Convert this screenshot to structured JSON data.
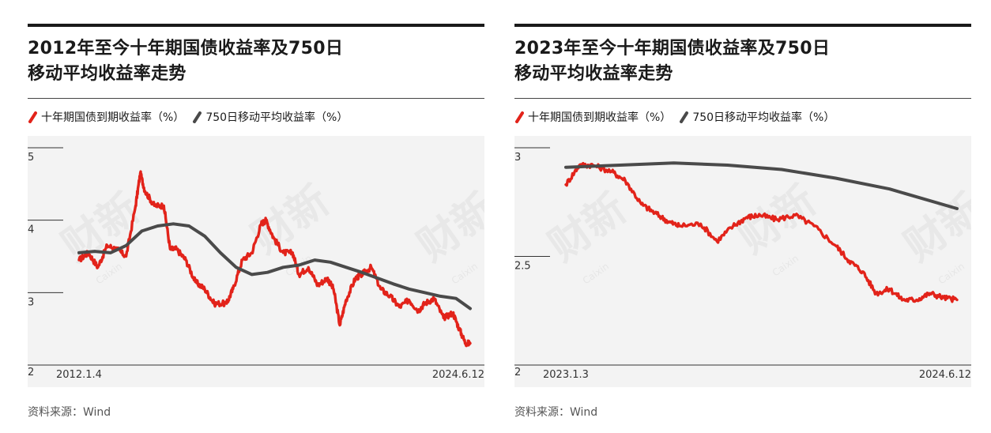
{
  "legend": {
    "yield_label": "十年期国债到期收益率（%）",
    "ma_label": "750日移动平均收益率（%）"
  },
  "colors": {
    "yield": "#e2231a",
    "ma": "#4a4a4a",
    "background": "#f3f3f3"
  },
  "source_text": "资料来源：Wind",
  "watermark": {
    "text": "财新",
    "sub": "Caixin"
  },
  "charts": [
    {
      "title_line1": "2012年至今十年期国债收益率及750日",
      "title_line2": "移动平均收益率走势",
      "start_label": "2012.1.4",
      "end_label": "2024.6.12"
    },
    {
      "title_line1": "2023年至今十年期国债收益率及750日",
      "title_line2": "移动平均收益率走势",
      "start_label": "2023.1.3",
      "end_label": "2024.6.12"
    }
  ],
  "chart_data": [
    {
      "type": "line",
      "title": "2012年至今十年期国债收益率及750日移动平均收益率走势",
      "x_range": [
        "2012.1.4",
        "2024.6.12"
      ],
      "ylim": [
        2,
        5
      ],
      "yticks": [
        2,
        3,
        4,
        5
      ],
      "grid": false,
      "legend": "top-left",
      "series": [
        {
          "name": "十年期国债到期收益率（%）",
          "x": [
            2012.0,
            2012.3,
            2012.6,
            2012.9,
            2013.2,
            2013.5,
            2013.8,
            2013.95,
            2014.1,
            2014.4,
            2014.7,
            2014.9,
            2015.1,
            2015.4,
            2015.7,
            2016.0,
            2016.3,
            2016.7,
            2016.9,
            2017.2,
            2017.5,
            2017.8,
            2017.95,
            2018.2,
            2018.5,
            2018.8,
            2019.0,
            2019.3,
            2019.6,
            2019.9,
            2020.1,
            2020.3,
            2020.5,
            2020.8,
            2021.0,
            2021.3,
            2021.6,
            2021.9,
            2022.2,
            2022.5,
            2022.8,
            2023.0,
            2023.3,
            2023.6,
            2023.9,
            2024.1,
            2024.3,
            2024.45
          ],
          "values": [
            3.45,
            3.55,
            3.35,
            3.65,
            3.6,
            3.5,
            4.2,
            4.65,
            4.4,
            4.2,
            4.2,
            3.6,
            3.6,
            3.45,
            3.15,
            3.05,
            2.85,
            2.85,
            3.05,
            3.45,
            3.55,
            3.95,
            4.0,
            3.75,
            3.55,
            3.55,
            3.25,
            3.35,
            3.1,
            3.2,
            3.05,
            2.55,
            2.9,
            3.2,
            3.25,
            3.35,
            3.05,
            2.95,
            2.8,
            2.9,
            2.75,
            2.85,
            2.92,
            2.65,
            2.72,
            2.5,
            2.3,
            2.3
          ]
        },
        {
          "name": "750日移动平均收益率（%）",
          "x": [
            2012.0,
            2012.5,
            2013.0,
            2013.5,
            2014.0,
            2014.5,
            2015.0,
            2015.5,
            2016.0,
            2016.5,
            2017.0,
            2017.5,
            2018.0,
            2018.5,
            2019.0,
            2019.5,
            2020.0,
            2020.5,
            2021.0,
            2021.5,
            2022.0,
            2022.5,
            2023.0,
            2023.5,
            2024.0,
            2024.45
          ],
          "values": [
            3.55,
            3.57,
            3.55,
            3.65,
            3.85,
            3.92,
            3.95,
            3.92,
            3.78,
            3.55,
            3.35,
            3.25,
            3.28,
            3.35,
            3.38,
            3.45,
            3.42,
            3.35,
            3.28,
            3.2,
            3.12,
            3.05,
            3.0,
            2.95,
            2.92,
            2.78
          ]
        }
      ]
    },
    {
      "type": "line",
      "title": "2023年至今十年期国债收益率及750日移动平均收益率走势",
      "x_range": [
        "2023.1.3",
        "2024.6.12"
      ],
      "ylim": [
        2,
        3
      ],
      "yticks": [
        2,
        2.5,
        3
      ],
      "grid": false,
      "legend": "top-left",
      "series": [
        {
          "name": "十年期国债到期收益率（%）",
          "x": [
            2023.0,
            2023.05,
            2023.1,
            2023.17,
            2023.22,
            2023.28,
            2023.33,
            2023.38,
            2023.42,
            2023.5,
            2023.56,
            2023.62,
            2023.67,
            2023.72,
            2023.78,
            2023.85,
            2023.92,
            2024.0,
            2024.05,
            2024.1,
            2024.15,
            2024.2,
            2024.25,
            2024.3,
            2024.35,
            2024.4,
            2024.45
          ],
          "values": [
            2.83,
            2.92,
            2.92,
            2.89,
            2.85,
            2.74,
            2.7,
            2.66,
            2.64,
            2.65,
            2.57,
            2.64,
            2.68,
            2.69,
            2.67,
            2.69,
            2.64,
            2.55,
            2.48,
            2.43,
            2.33,
            2.35,
            2.3,
            2.3,
            2.33,
            2.31,
            2.3
          ]
        },
        {
          "name": "750日移动平均收益率（%）",
          "x": [
            2023.0,
            2023.2,
            2023.4,
            2023.6,
            2023.8,
            2024.0,
            2024.2,
            2024.45
          ],
          "values": [
            2.91,
            2.92,
            2.93,
            2.92,
            2.9,
            2.86,
            2.81,
            2.72
          ]
        }
      ]
    }
  ]
}
